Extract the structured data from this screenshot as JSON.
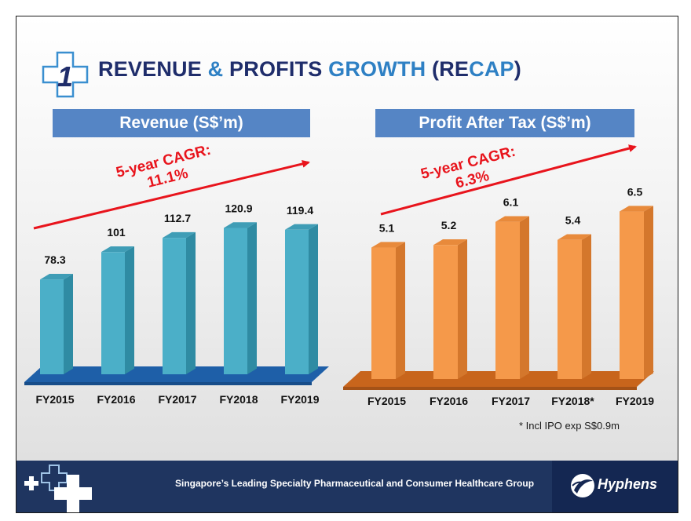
{
  "title": {
    "number": "1",
    "parts": [
      {
        "text": "REVENUE",
        "color": "#1f2d6b"
      },
      {
        "text": " & ",
        "color": "#2e80c4"
      },
      {
        "text": "PROFITS ",
        "color": "#1f2d6b"
      },
      {
        "text": "GROWTH ",
        "color": "#2e80c4"
      },
      {
        "text": "(RE",
        "color": "#1f2d6b"
      },
      {
        "text": "CAP",
        "color": "#2e80c4"
      },
      {
        "text": ")",
        "color": "#1f2d6b"
      }
    ]
  },
  "chart_data": [
    {
      "type": "bar",
      "title": "Revenue (S$’m)",
      "categories": [
        "FY2015",
        "FY2016",
        "FY2017",
        "FY2018",
        "FY2019"
      ],
      "values": [
        78.3,
        101,
        112.7,
        120.9,
        119.4
      ],
      "value_labels": [
        "78.3",
        "101",
        "112.7",
        "120.9",
        "119.4"
      ],
      "annotation": {
        "line1": "5-year CAGR:",
        "line2": "11.1%"
      },
      "ylim": [
        0,
        140
      ],
      "grid": false,
      "colors": {
        "front": "#4bafc8",
        "side": "#2f8ba3",
        "top": "#3f9db6",
        "floor": "#1e5fa8",
        "floor_edge": "#174d8a"
      }
    },
    {
      "type": "bar",
      "title": "Profit After Tax (S$’m)",
      "categories": [
        "FY2015",
        "FY2016",
        "FY2017",
        "FY2018*",
        "FY2019"
      ],
      "values": [
        5.1,
        5.2,
        6.1,
        5.4,
        6.5
      ],
      "value_labels": [
        "5.1",
        "5.2",
        "6.1",
        "5.4",
        "6.5"
      ],
      "annotation": {
        "line1": "5-year CAGR:",
        "line2": "6.3%"
      },
      "ylim": [
        0,
        7.4
      ],
      "grid": false,
      "colors": {
        "front": "#f5994a",
        "side": "#d4772c",
        "top": "#e88a3b",
        "floor": "#c8651c",
        "floor_edge": "#a45217"
      }
    }
  ],
  "footnote": "* Incl IPO exp S$0.9m",
  "footer": {
    "tagline": "Singapore’s Leading Specialty Pharmaceutical and Consumer Healthcare Group",
    "logo_text": "Hyphens"
  },
  "colors": {
    "arrow": "#e8141c",
    "banner": "#5585c5",
    "footer": "#1f3560"
  }
}
